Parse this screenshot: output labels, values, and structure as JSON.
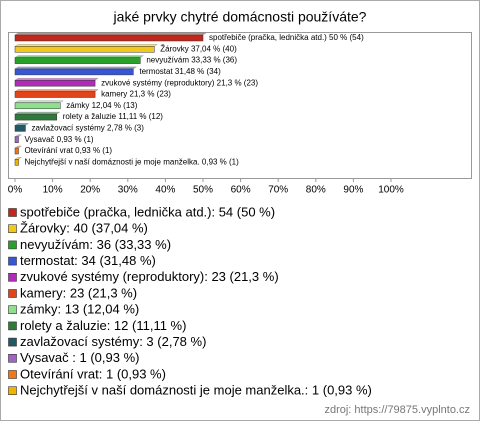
{
  "chart_data": {
    "type": "bar",
    "orientation": "horizontal",
    "title": "jaké prvky chytré domácnosti používáte?",
    "values": [
      50,
      37.04,
      33.33,
      31.48,
      21.3,
      21.3,
      12.04,
      11.11,
      2.78,
      0.93,
      0.93,
      0.93
    ],
    "value_labels": [
      "spotřebiče (pračka, lednička atd.) 50 % (54)",
      "Žárovky 37,04 % (40)",
      "nevyužívám 33,33 % (36)",
      "termostat 31,48 % (34)",
      "zvukové systémy (reproduktory) 21,3 % (23)",
      "kamery 21,3 % (23)",
      "zámky 12,04 % (13)",
      "rolety a žaluzie 11,11 % (12)",
      "zavlažovací systémy 2,78 % (3)",
      "Vysavač 0,93 % (1)",
      "Otevírání vrat 0,93 % (1)",
      "Nejchytřejší v naší domáznosti je moje manželka. 0,93 % (1)"
    ],
    "legend_labels": [
      "spotřebiče (pračka, lednička atd.): 54 (50 %)",
      "Žárovky: 40 (37,04 %)",
      "nevyužívám: 36 (33,33 %)",
      "termostat: 34 (31,48 %)",
      "zvukové systémy (reproduktory): 23 (21,3 %)",
      "kamery: 23 (21,3 %)",
      "zámky: 13 (12,04 %)",
      "rolety a žaluzie: 12 (11,11 %)",
      "zavlažovací systémy: 3 (2,78 %)",
      "Vysavač : 1 (0,93 %)",
      "Otevírání vrat: 1 (0,93 %)",
      "Nejchytřejší v naší domáznosti je moje manželka.: 1 (0,93 %)"
    ],
    "colors": [
      "#c0281c",
      "#f2c81e",
      "#2aa02a",
      "#3656d6",
      "#b02cb8",
      "#e2441a",
      "#8ee08e",
      "#2e7a3a",
      "#245866",
      "#a064c4",
      "#f07818",
      "#f0b400"
    ],
    "xlim": [
      0,
      100
    ],
    "xticks": [
      {
        "value": 0,
        "label": "0%"
      },
      {
        "value": 10,
        "label": "10%"
      },
      {
        "value": 20,
        "label": "20%"
      },
      {
        "value": 30,
        "label": "30%"
      },
      {
        "value": 40,
        "label": "40%"
      },
      {
        "value": 50,
        "label": "50%"
      },
      {
        "value": 60,
        "label": "60%"
      },
      {
        "value": 70,
        "label": "70%"
      },
      {
        "value": 80,
        "label": "80%"
      },
      {
        "value": 90,
        "label": "90%"
      },
      {
        "value": 100,
        "label": "100%"
      }
    ],
    "source": "zdroj: https://79875.vyplnto.cz"
  }
}
